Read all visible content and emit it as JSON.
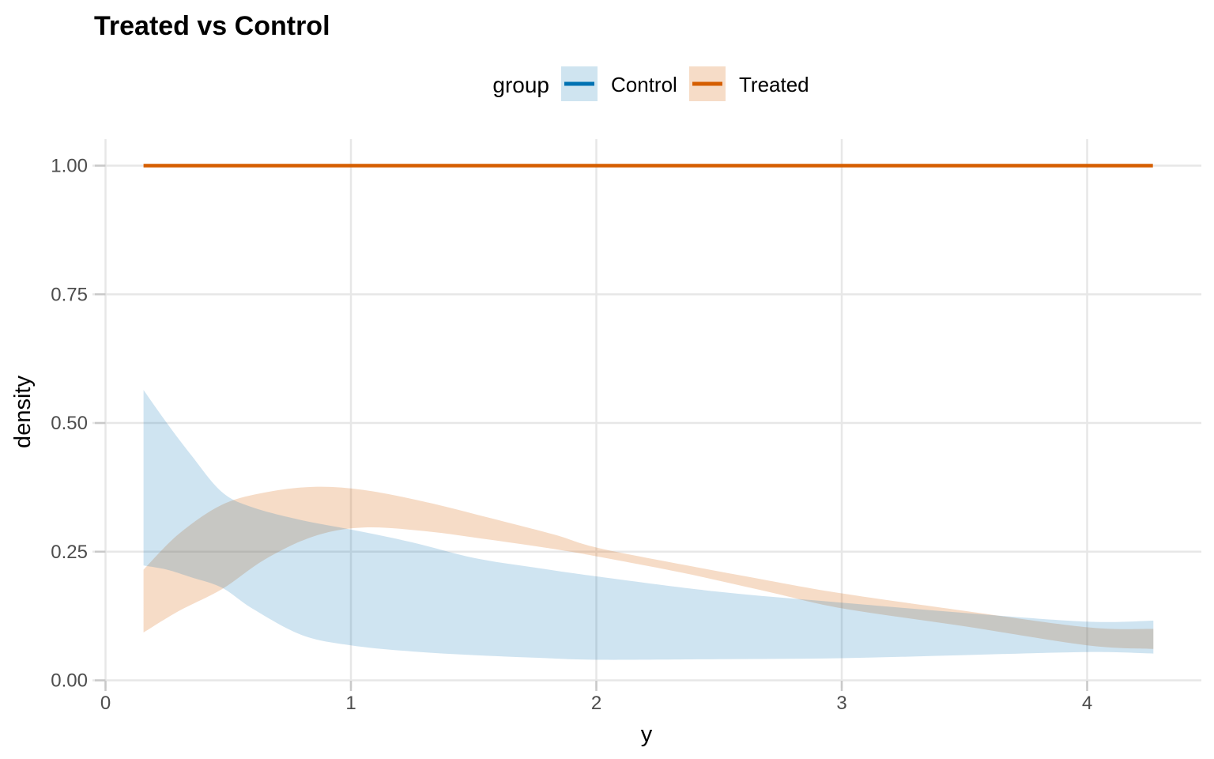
{
  "title": "Treated vs Control",
  "legend": {
    "title": "group",
    "items": [
      {
        "label": "Control",
        "line_color": "#0072B2",
        "fill_color": "#CFE4F0"
      },
      {
        "label": "Treated",
        "line_color": "#D55E00",
        "fill_color": "#F6DCC7"
      }
    ]
  },
  "axes": {
    "x_title": "y",
    "y_title": "density",
    "x_tick_labels": [
      "0",
      "1",
      "2",
      "3",
      "4"
    ],
    "x_tick_values": [
      0,
      1,
      2,
      3,
      4
    ],
    "y_tick_labels": [
      "0.00",
      "0.25",
      "0.50",
      "0.75",
      "1.00"
    ],
    "y_tick_values": [
      0,
      0.25,
      0.5,
      0.75,
      1
    ],
    "tick_label_color": "#4D4D4D",
    "grid_color": "#E7E7E7",
    "tick_color": "#C9C9C9"
  },
  "chart_data": {
    "type": "area",
    "title": "Treated vs Control",
    "xlabel": "y",
    "ylabel": "density",
    "legend_title": "group",
    "legend_position": "top",
    "grid": "major-only",
    "xlim": [
      -0.05,
      4.47
    ],
    "ylim": [
      -0.05,
      1.06
    ],
    "x_ticks": [
      0,
      1,
      2,
      3,
      4
    ],
    "y_ticks": [
      0,
      0.25,
      0.5,
      0.75,
      1
    ],
    "series": [
      {
        "name": "Treated",
        "geom": "ribbon",
        "fill": "#D55E00",
        "fill_opacity": 0.22,
        "x": [
          0.155,
          0.3,
          0.474,
          0.65,
          0.85,
          1.05,
          1.3,
          1.57,
          1.83,
          2.0,
          2.35,
          2.7,
          3.0,
          3.5,
          4.0,
          4.27
        ],
        "upper": [
          0.215,
          0.285,
          0.341,
          0.365,
          0.376,
          0.37,
          0.347,
          0.315,
          0.283,
          0.258,
          0.225,
          0.194,
          0.169,
          0.135,
          0.103,
          0.1
        ],
        "lower": [
          0.093,
          0.135,
          0.177,
          0.235,
          0.28,
          0.297,
          0.29,
          0.273,
          0.255,
          0.241,
          0.209,
          0.172,
          0.14,
          0.105,
          0.068,
          0.061
        ]
      },
      {
        "name": "Control",
        "geom": "ribbon",
        "fill": "#0072B2",
        "fill_opacity": 0.19,
        "x": [
          0.155,
          0.25,
          0.35,
          0.474,
          0.6,
          0.8,
          1.0,
          1.25,
          1.5,
          1.75,
          2.0,
          2.5,
          3.0,
          3.5,
          4.0,
          4.27
        ],
        "upper": [
          0.564,
          0.5,
          0.437,
          0.366,
          0.336,
          0.311,
          0.293,
          0.268,
          0.238,
          0.219,
          0.202,
          0.172,
          0.151,
          0.131,
          0.114,
          0.116
        ],
        "lower": [
          0.223,
          0.215,
          0.2,
          0.18,
          0.139,
          0.088,
          0.068,
          0.056,
          0.049,
          0.044,
          0.04,
          0.041,
          0.043,
          0.049,
          0.055,
          0.052
        ]
      },
      {
        "name": "Treated",
        "geom": "line",
        "color": "#D55E00",
        "line_width": 4.5,
        "x": [
          0.155,
          4.268
        ],
        "y": [
          1.0,
          1.0
        ]
      }
    ]
  }
}
